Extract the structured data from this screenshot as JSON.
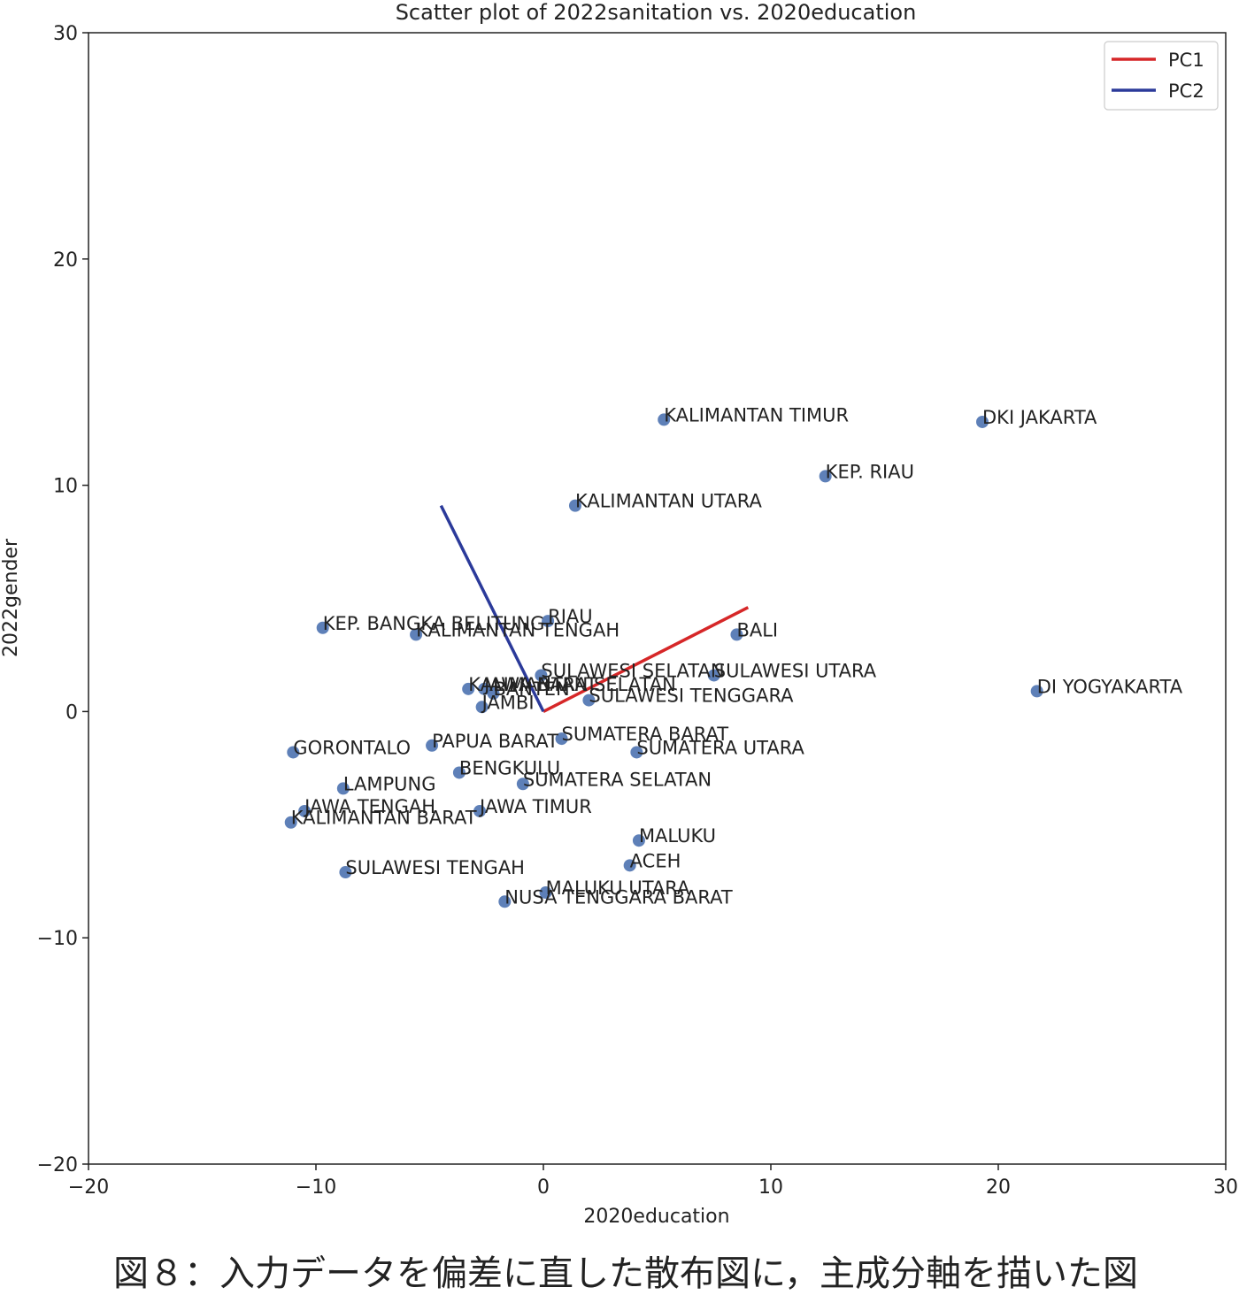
{
  "chart_data": {
    "type": "scatter",
    "title": "Scatter plot of 2022sanitation vs. 2020education",
    "xlabel": "2020education",
    "ylabel": "2022gender",
    "xlim": [
      -20,
      30
    ],
    "ylim": [
      -20,
      30
    ],
    "xticks": [
      -20,
      -10,
      0,
      10,
      20,
      30
    ],
    "yticks": [
      -20,
      -10,
      0,
      10,
      20,
      30
    ],
    "xtick_labels": [
      "−20",
      "−10",
      "0",
      "10",
      "20",
      "30"
    ],
    "ytick_labels": [
      "−20",
      "−10",
      "0",
      "10",
      "20",
      "30"
    ],
    "grid": false,
    "legend_position": "top-right",
    "point_color": "#4c72b0",
    "points": [
      {
        "label": "KALIMANTAN TIMUR",
        "x": 5.3,
        "y": 12.9
      },
      {
        "label": "DKI JAKARTA",
        "x": 19.3,
        "y": 12.8
      },
      {
        "label": "KEP. RIAU",
        "x": 12.4,
        "y": 10.4
      },
      {
        "label": "KALIMANTAN UTARA",
        "x": 1.4,
        "y": 9.1
      },
      {
        "label": "RIAU",
        "x": 0.2,
        "y": 4.0
      },
      {
        "label": "KEP. BANGKA BELITUNG",
        "x": -9.7,
        "y": 3.7
      },
      {
        "label": "KALIMANTAN TENGAH",
        "x": -5.6,
        "y": 3.4
      },
      {
        "label": "BALI",
        "x": 8.5,
        "y": 3.4
      },
      {
        "label": "SULAWESI SELATAN",
        "x": -0.1,
        "y": 1.6
      },
      {
        "label": "SULAWESI UTARA",
        "x": 7.5,
        "y": 1.6
      },
      {
        "label": "KALIMANTAN SELATAN",
        "x": -3.3,
        "y": 1.0
      },
      {
        "label": "JAWA BARAT",
        "x": -2.6,
        "y": 1.0
      },
      {
        "label": "BANTEN",
        "x": -2.2,
        "y": 0.8
      },
      {
        "label": "SULAWESI TENGGARA",
        "x": 2.0,
        "y": 0.5
      },
      {
        "label": "JAMBI",
        "x": -2.7,
        "y": 0.2
      },
      {
        "label": "DI YOGYAKARTA",
        "x": 21.7,
        "y": 0.9
      },
      {
        "label": "SUMATERA BARAT",
        "x": 0.8,
        "y": -1.2
      },
      {
        "label": "GORONTALO",
        "x": -11.0,
        "y": -1.8
      },
      {
        "label": "PAPUA BARAT",
        "x": -4.9,
        "y": -1.5
      },
      {
        "label": "SUMATERA UTARA",
        "x": 4.1,
        "y": -1.8
      },
      {
        "label": "BENGKULU",
        "x": -3.7,
        "y": -2.7
      },
      {
        "label": "SUMATERA SELATAN",
        "x": -0.9,
        "y": -3.2
      },
      {
        "label": "LAMPUNG",
        "x": -8.8,
        "y": -3.4
      },
      {
        "label": "JAWA TENGAH",
        "x": -10.5,
        "y": -4.4
      },
      {
        "label": "JAWA TIMUR",
        "x": -2.8,
        "y": -4.4
      },
      {
        "label": "KALIMANTAN BARAT",
        "x": -11.1,
        "y": -4.9
      },
      {
        "label": "MALUKU",
        "x": 4.2,
        "y": -5.7
      },
      {
        "label": "ACEH",
        "x": 3.8,
        "y": -6.8
      },
      {
        "label": "SULAWESI TENGAH",
        "x": -8.7,
        "y": -7.1
      },
      {
        "label": "MALUKU UTARA",
        "x": 0.1,
        "y": -8.0
      },
      {
        "label": "NUSA TENGGARA BARAT",
        "x": -1.7,
        "y": -8.4
      }
    ],
    "series": [
      {
        "name": "PC1",
        "color": "#d62728",
        "x": [
          0,
          9.0
        ],
        "y": [
          0,
          4.6
        ]
      },
      {
        "name": "PC2",
        "color": "#2b3a9a",
        "x": [
          0,
          -4.5
        ],
        "y": [
          0,
          9.1
        ]
      }
    ]
  },
  "caption": "図８：入力データを偏差に直した散布図に，主成分軸を描いた図"
}
